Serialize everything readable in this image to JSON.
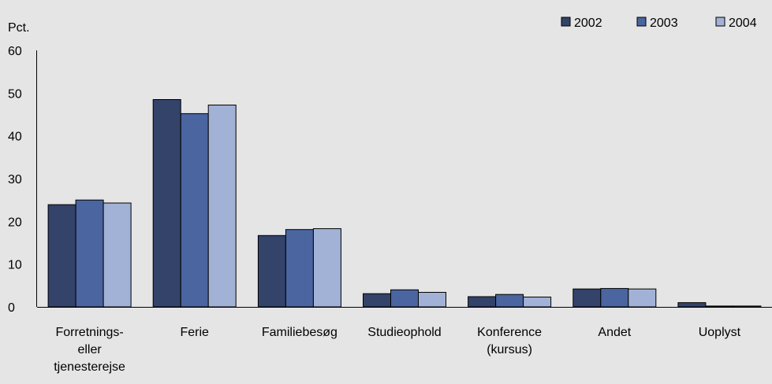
{
  "chart_data": {
    "type": "bar",
    "ylabel": "Pct.",
    "ylim": [
      0,
      60
    ],
    "yticks": [
      "0",
      "10",
      "20",
      "30",
      "40",
      "50",
      "60"
    ],
    "grid": false,
    "legend_position": "top-right",
    "categories": [
      [
        "Forretnings-",
        "eller",
        "tjenesterejse"
      ],
      [
        "Ferie"
      ],
      [
        "Familiebesøg"
      ],
      [
        "Studieophold"
      ],
      [
        "Konference",
        "(kursus)"
      ],
      [
        "Andet"
      ],
      [
        "Uoplyst"
      ]
    ],
    "series": [
      {
        "name": "2002",
        "color": "#33436a",
        "values": [
          23.9,
          48.5,
          16.7,
          3.1,
          2.4,
          4.2,
          1.0
        ]
      },
      {
        "name": "2003",
        "color": "#4a65a0",
        "values": [
          25.0,
          45.2,
          18.1,
          4.0,
          2.9,
          4.3,
          0.2
        ]
      },
      {
        "name": "2004",
        "color": "#a2b2d6",
        "values": [
          24.3,
          47.2,
          18.3,
          3.4,
          2.3,
          4.2,
          0.2
        ]
      }
    ]
  }
}
